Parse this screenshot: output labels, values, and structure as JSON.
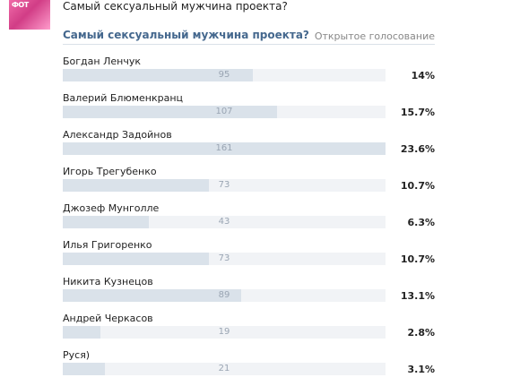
{
  "post": {
    "text": "Самый сексуальный мужчина проекта?"
  },
  "poll": {
    "title": "Самый сексуальный мужчина проекта?",
    "type": "Открытое голосование",
    "options": [
      {
        "label": "Богдан Ленчук",
        "count": "95",
        "percent": "14%",
        "fraction": 0.59
      },
      {
        "label": "Валерий Блюменкранц",
        "count": "107",
        "percent": "15.7%",
        "fraction": 0.665
      },
      {
        "label": "Александр Задойнов",
        "count": "161",
        "percent": "23.6%",
        "fraction": 1.0
      },
      {
        "label": "Игорь Трегубенко",
        "count": "73",
        "percent": "10.7%",
        "fraction": 0.453
      },
      {
        "label": "Джозеф Мунголле",
        "count": "43",
        "percent": "6.3%",
        "fraction": 0.267
      },
      {
        "label": "Илья Григоренко",
        "count": "73",
        "percent": "10.7%",
        "fraction": 0.453
      },
      {
        "label": "Никита Кузнецов",
        "count": "89",
        "percent": "13.1%",
        "fraction": 0.553
      },
      {
        "label": "Андрей Черкасов",
        "count": "19",
        "percent": "2.8%",
        "fraction": 0.118
      },
      {
        "label": "Руся)",
        "count": "21",
        "percent": "3.1%",
        "fraction": 0.13
      }
    ]
  }
}
